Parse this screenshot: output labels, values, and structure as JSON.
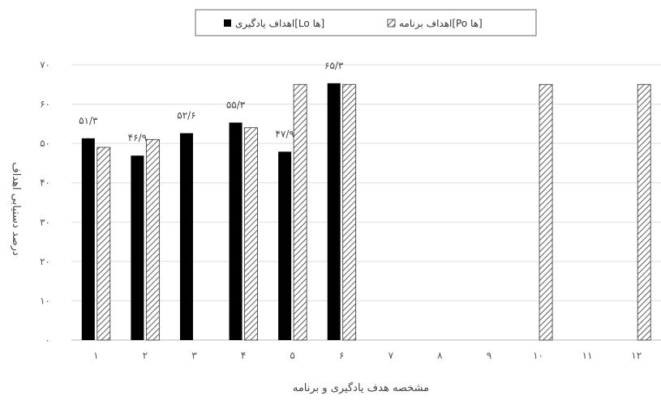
{
  "chart_data": {
    "type": "bar",
    "categories": [
      "۱",
      "۲",
      "۳",
      "۴",
      "۵",
      "۶",
      "۷",
      "۸",
      "۹",
      "۱۰",
      "۱۱",
      "۱۲"
    ],
    "series": [
      {
        "name": "اهداف یادگیری[Lo ها]",
        "pattern": "solid",
        "color": "#000000",
        "values": [
          51.3,
          46.9,
          52.6,
          55.3,
          47.9,
          65.3,
          null,
          null,
          null,
          null,
          null,
          null
        ],
        "data_labels": [
          "۵۱/۳",
          "۴۶/۹",
          "۵۲/۶",
          "۵۵/۳",
          "۴۷/۹",
          "۶۵/۳",
          "",
          "",
          "",
          "",
          "",
          ""
        ]
      },
      {
        "name": "اهداف برنامه[Po ها]",
        "pattern": "hatched",
        "color": "#444444",
        "values": [
          49,
          51,
          null,
          54,
          65,
          65,
          null,
          null,
          null,
          65,
          null,
          65
        ]
      }
    ],
    "xlabel": "مشخصه هدف یادگیری و برنامه",
    "ylabel": "درصد دستیابی اهداف",
    "yticks": [
      "۰",
      "۱۰",
      "۲۰",
      "۳۰",
      "۴۰",
      "۵۰",
      "۶۰",
      "۷۰"
    ],
    "ylim": [
      0,
      70
    ],
    "grid": true,
    "legend_position": "top"
  }
}
